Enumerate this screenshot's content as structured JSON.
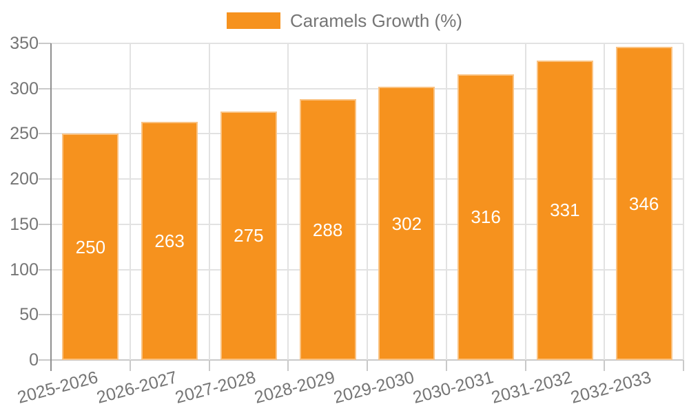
{
  "legend": {
    "label": "Caramels Growth (%)"
  },
  "chart_data": {
    "type": "bar",
    "title": "Caramels Growth (%)",
    "categories": [
      "2025-2026",
      "2026-2027",
      "2027-2028",
      "2028-2029",
      "2029-2030",
      "2030-2031",
      "2031-2032",
      "2032-2033"
    ],
    "series": [
      {
        "name": "Caramels Growth (%)",
        "values": [
          250,
          263,
          275,
          288,
          302,
          316,
          331,
          346
        ]
      }
    ],
    "xlabel": "",
    "ylabel": "",
    "ylim": [
      0,
      350
    ],
    "yticks": [
      0,
      50,
      100,
      150,
      200,
      250,
      300,
      350
    ],
    "grid": true,
    "legend_position": "top-center",
    "value_labels_inside_bars": true,
    "colors": {
      "bar": "#f6921e",
      "value_label": "#ffffff",
      "axis_text": "#757575",
      "gridline": "#e2e2e2",
      "axis_line": "#8f8f8f",
      "tick_line": "#c9c9c9"
    }
  }
}
